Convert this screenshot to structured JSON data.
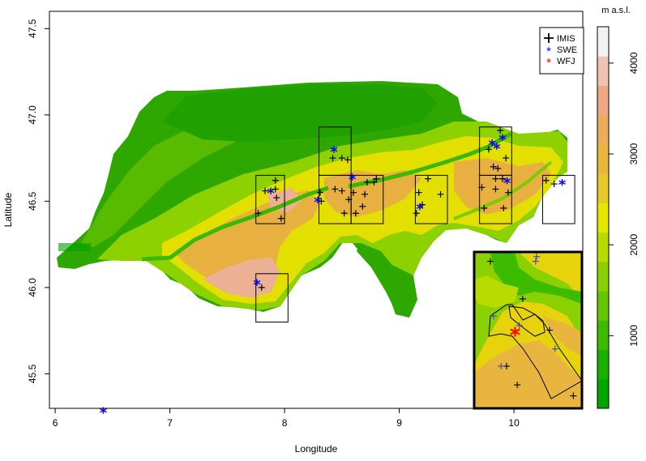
{
  "x_axis": {
    "label": "Longitude",
    "ticks": [
      "6",
      "7",
      "8",
      "9",
      "10"
    ],
    "range": [
      5.95,
      10.6
    ]
  },
  "y_axis": {
    "label": "Latitude",
    "ticks": [
      "45.5",
      "46.0",
      "46.5",
      "47.0",
      "47.5"
    ],
    "range": [
      45.3,
      47.6
    ]
  },
  "colorbar": {
    "title": "m a.s.l.",
    "ticks": [
      "1000",
      "2000",
      "3000",
      "4000"
    ],
    "range": [
      200,
      4400
    ],
    "colors": [
      "#00a600",
      "#1bb000",
      "#3dbb00",
      "#63c600",
      "#8bd000",
      "#b8db00",
      "#e6e600",
      "#e6c929",
      "#e8b63f",
      "#eaad5a",
      "#eca982",
      "#efc2b2",
      "#f2f2f2"
    ]
  },
  "legend": {
    "items": [
      {
        "label": "IMIS",
        "marker": "+",
        "color": "#000000"
      },
      {
        "label": "SWE",
        "marker": "*",
        "color": "#0000ff"
      },
      {
        "label": "WFJ",
        "marker": "*",
        "color": "#ff0000"
      }
    ]
  },
  "map_data": {
    "regions": [
      {
        "lon": [
          7.75,
          8.0
        ],
        "lat": [
          46.37,
          46.65
        ]
      },
      {
        "lon": [
          8.3,
          8.58
        ],
        "lat": [
          46.37,
          46.65
        ]
      },
      {
        "lon": [
          8.58,
          8.86
        ],
        "lat": [
          46.37,
          46.65
        ]
      },
      {
        "lon": [
          8.3,
          8.58
        ],
        "lat": [
          46.65,
          46.93
        ]
      },
      {
        "lon": [
          9.14,
          9.42
        ],
        "lat": [
          46.37,
          46.65
        ]
      },
      {
        "lon": [
          9.7,
          9.98
        ],
        "lat": [
          46.37,
          46.65
        ]
      },
      {
        "lon": [
          9.7,
          9.98
        ],
        "lat": [
          46.65,
          46.93
        ]
      },
      {
        "lon": [
          10.25,
          10.53
        ],
        "lat": [
          46.37,
          46.65
        ]
      },
      {
        "lon": [
          7.75,
          8.03
        ],
        "lat": [
          45.8,
          46.08
        ]
      }
    ],
    "imis": [
      [
        7.77,
        46.43
      ],
      [
        7.83,
        46.56
      ],
      [
        7.92,
        46.62
      ],
      [
        7.92,
        46.57
      ],
      [
        7.93,
        46.52
      ],
      [
        7.97,
        46.4
      ],
      [
        8.31,
        46.55
      ],
      [
        8.32,
        46.5
      ],
      [
        8.42,
        46.75
      ],
      [
        8.44,
        46.57
      ],
      [
        8.5,
        46.75
      ],
      [
        8.5,
        46.56
      ],
      [
        8.52,
        46.43
      ],
      [
        8.55,
        46.74
      ],
      [
        8.56,
        46.51
      ],
      [
        8.6,
        46.55
      ],
      [
        8.62,
        46.43
      ],
      [
        8.68,
        46.47
      ],
      [
        8.7,
        46.54
      ],
      [
        8.72,
        46.61
      ],
      [
        8.78,
        46.61
      ],
      [
        8.8,
        46.63
      ],
      [
        9.15,
        46.43
      ],
      [
        9.17,
        46.55
      ],
      [
        9.2,
        46.48
      ],
      [
        9.25,
        46.63
      ],
      [
        9.36,
        46.54
      ],
      [
        9.72,
        46.58
      ],
      [
        9.74,
        46.46
      ],
      [
        9.78,
        46.8
      ],
      [
        9.82,
        46.7
      ],
      [
        9.84,
        46.63
      ],
      [
        9.84,
        46.57
      ],
      [
        9.86,
        46.69
      ],
      [
        9.88,
        46.91
      ],
      [
        9.9,
        46.63
      ],
      [
        9.91,
        46.46
      ],
      [
        9.93,
        46.75
      ],
      [
        9.95,
        46.55
      ],
      [
        10.28,
        46.62
      ],
      [
        10.35,
        46.6
      ],
      [
        7.8,
        46.0
      ]
    ],
    "swe": [
      [
        7.88,
        46.55
      ],
      [
        8.29,
        46.5
      ],
      [
        8.43,
        46.79
      ],
      [
        8.59,
        46.63
      ],
      [
        9.18,
        46.46
      ],
      [
        9.81,
        46.83
      ],
      [
        9.85,
        46.81
      ],
      [
        9.9,
        46.86
      ],
      [
        9.94,
        46.61
      ],
      [
        10.42,
        46.6
      ],
      [
        7.76,
        46.02
      ],
      [
        6.42,
        45.28
      ]
    ],
    "inset_imis": [
      [
        0.15,
        0.06
      ],
      [
        0.45,
        0.3
      ],
      [
        0.7,
        0.5
      ],
      [
        0.4,
        0.85
      ],
      [
        0.3,
        0.73
      ],
      [
        0.92,
        0.92
      ]
    ],
    "inset_swe": [
      [
        0.58,
        0.03
      ],
      [
        0.57,
        0.06
      ],
      [
        0.18,
        0.41
      ],
      [
        0.25,
        0.73
      ],
      [
        0.42,
        0.47
      ],
      [
        0.75,
        0.62
      ]
    ],
    "inset_wfj": [
      [
        0.38,
        0.53
      ]
    ]
  }
}
